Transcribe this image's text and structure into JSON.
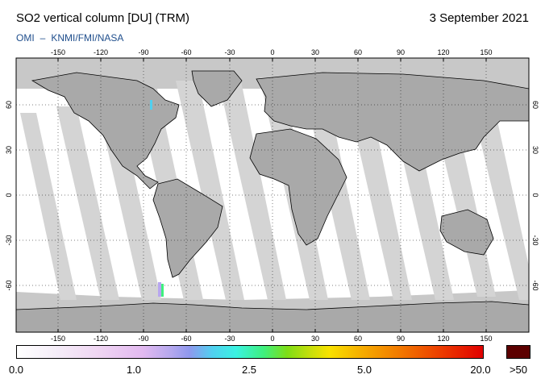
{
  "header": {
    "title": "SO2 vertical column [DU] (TRM)",
    "date": "3 September 2021",
    "credit_instrument": "OMI",
    "credit_separator": "–",
    "credit_agencies": "KNMI/FMI/NASA"
  },
  "map": {
    "projection": "equirectangular",
    "lon_range": [
      -180,
      180
    ],
    "lat_range": [
      -90,
      90
    ],
    "ocean_color": "#ffffff",
    "swath_color": "#c8c8c8",
    "land_gap_color": "#a8a8a8",
    "lon_ticks": [
      "-150",
      "-120",
      "-90",
      "-60",
      "-30",
      "0",
      "30",
      "60",
      "90",
      "120",
      "150"
    ],
    "lat_ticks_left": [
      "60",
      "30",
      "0",
      "-30",
      "-60"
    ],
    "lat_ticks_right": [
      "60",
      "30",
      "0",
      "-30",
      "-60"
    ]
  },
  "colorbar": {
    "ticks": [
      "0.0",
      "1.0",
      "2.5",
      "5.0",
      "20.0"
    ],
    "over_label": ">50",
    "over_color": "#5c0000"
  }
}
